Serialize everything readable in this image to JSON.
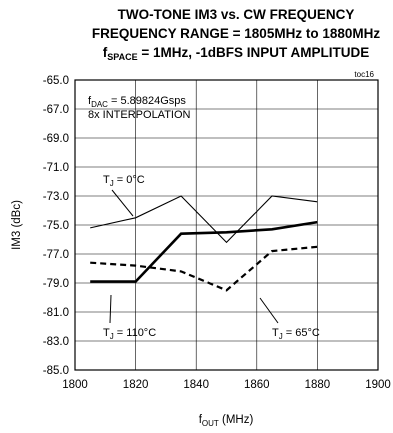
{
  "title": {
    "line1": "TWO-TONE IM3 vs. CW FREQUENCY",
    "line2": "FREQUENCY RANGE = 1805MHz to 1880MHz",
    "line3_main": "f",
    "line3_sub": "SPACE",
    "line3_rest": " = 1MHz, -1dBFS INPUT AMPLITUDE"
  },
  "toc": "toc16",
  "note": {
    "line1_main": "f",
    "line1_sub": "DAC",
    "line1_rest": " = 5.89824Gsps",
    "line2": "8x INTERPOLATION"
  },
  "labels": {
    "t0": {
      "main": "T",
      "sub": "J",
      "rest": " = 0°C"
    },
    "t110": {
      "main": "T",
      "sub": "J",
      "rest": " = 110°C"
    },
    "t65": {
      "main": "T",
      "sub": "J",
      "rest": " = 65°C"
    }
  },
  "xlabel": {
    "main": "f",
    "sub": "OUT",
    "rest": " (MHz)"
  },
  "ylabel": "IM3 (dBc)",
  "chart_data": {
    "type": "line",
    "title": "TWO-TONE IM3 vs. CW FREQUENCY FREQUENCY RANGE = 1805MHz to 1880MHz fSPACE = 1MHz, -1dBFS INPUT AMPLITUDE",
    "xlabel": "fOUT (MHz)",
    "ylabel": "IM3 (dBc)",
    "xlim": [
      1800,
      1900
    ],
    "ylim": [
      -85,
      -65
    ],
    "xticks": [
      1800,
      1820,
      1840,
      1860,
      1880,
      1900
    ],
    "xtick_labels": [
      "1800",
      "1820",
      "1840",
      "1860",
      "1880",
      "1900"
    ],
    "yticks": [
      -65,
      -67,
      -69,
      -71,
      -73,
      -75,
      -77,
      -79,
      -81,
      -83,
      -85
    ],
    "ytick_labels": [
      "-65.0",
      "-67.0",
      "-69.0",
      "-71.0",
      "-73.0",
      "-75.0",
      "-77.0",
      "-79.0",
      "-81.0",
      "-83.0",
      "-85.0"
    ],
    "grid": true,
    "series": [
      {
        "name": "TJ = 0°C",
        "style": "thin",
        "x": [
          1805,
          1820,
          1835,
          1850,
          1865,
          1880
        ],
        "y": [
          -75.2,
          -74.5,
          -73.0,
          -76.2,
          -73.0,
          -73.4
        ]
      },
      {
        "name": "TJ = 110°C",
        "style": "bold",
        "x": [
          1805,
          1820,
          1835,
          1850,
          1865,
          1880
        ],
        "y": [
          -78.9,
          -78.9,
          -75.6,
          -75.5,
          -75.3,
          -74.8
        ]
      },
      {
        "name": "TJ = 65°C",
        "style": "dashed",
        "x": [
          1805,
          1820,
          1835,
          1850,
          1865,
          1880
        ],
        "y": [
          -77.6,
          -77.8,
          -78.2,
          -79.5,
          -76.8,
          -76.5
        ]
      }
    ]
  }
}
